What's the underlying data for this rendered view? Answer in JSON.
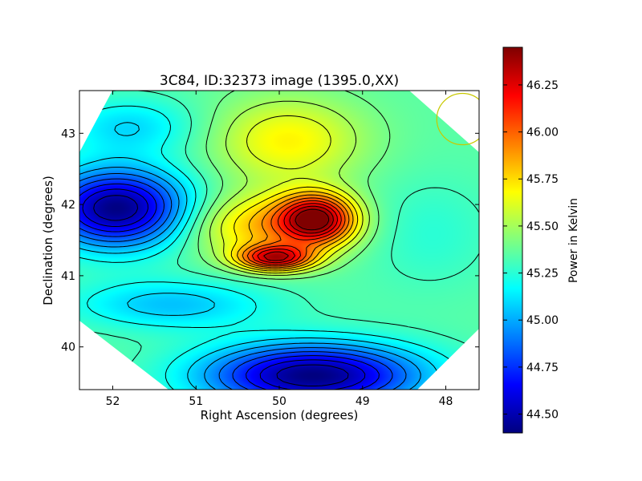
{
  "chart_data": {
    "type": "heatmap",
    "title": "3C84, ID:32373 image (1395.0,XX)",
    "xlabel": "Right Ascension (degrees)",
    "ylabel": "Declination (degrees)",
    "xlim": [
      52.4,
      47.6
    ],
    "ylim": [
      39.4,
      43.6
    ],
    "x_axis_inverted": true,
    "x_ticks": [
      "52",
      "51",
      "50",
      "49",
      "48"
    ],
    "x_tick_values": [
      52,
      51,
      50,
      49,
      48
    ],
    "y_ticks": [
      "40",
      "41",
      "42",
      "43"
    ],
    "y_tick_values": [
      40,
      41,
      42,
      43
    ],
    "colorbar": {
      "label": "Power in Kelvin",
      "range": [
        44.4,
        46.45
      ],
      "ticks": [
        "44.50",
        "44.75",
        "45.00",
        "45.25",
        "45.50",
        "45.75",
        "46.00",
        "46.25"
      ],
      "tick_values": [
        44.5,
        44.75,
        45.0,
        45.25,
        45.5,
        45.75,
        46.0,
        46.25
      ],
      "colormap": "jet"
    },
    "features": [
      {
        "kind": "peak",
        "ra": 49.55,
        "dec": 41.8,
        "value": 46.45
      },
      {
        "kind": "peak",
        "ra": 50.05,
        "dec": 41.25,
        "value": 46.4
      },
      {
        "kind": "minimum",
        "ra": 51.95,
        "dec": 41.95,
        "value": 44.4
      },
      {
        "kind": "minimum",
        "ra": 49.5,
        "dec": 39.6,
        "value": 44.4
      }
    ],
    "contours": "on",
    "beam_circle": {
      "ra": 47.8,
      "dec": 43.2,
      "color": "#c8c800"
    }
  }
}
